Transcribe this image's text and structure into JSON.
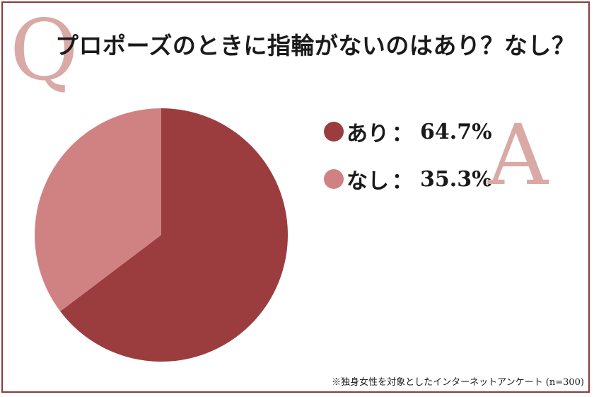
{
  "header": {
    "q_letter": "Q",
    "title": "プロポーズのときに指輪がないのはあり？なし？",
    "a_letter": "A"
  },
  "footnote": "※独身女性を対象としたインターネットアンケート (n=300)",
  "chart_data": {
    "type": "pie",
    "title": "プロポーズのときに指輪がないのはあり？なし？",
    "slices": [
      {
        "label": "あり",
        "value": 64.7,
        "value_label": "64.7%",
        "color": "#9b3d3f"
      },
      {
        "label": "なし",
        "value": 35.3,
        "value_label": "35.3%",
        "color": "#d08283"
      }
    ],
    "separator": "：",
    "start_angle_deg": 0,
    "direction": "clockwise",
    "legend_position": "right"
  },
  "colors": {
    "frame": "#8b3a3a",
    "accent_letters": "#d9a9a6"
  }
}
